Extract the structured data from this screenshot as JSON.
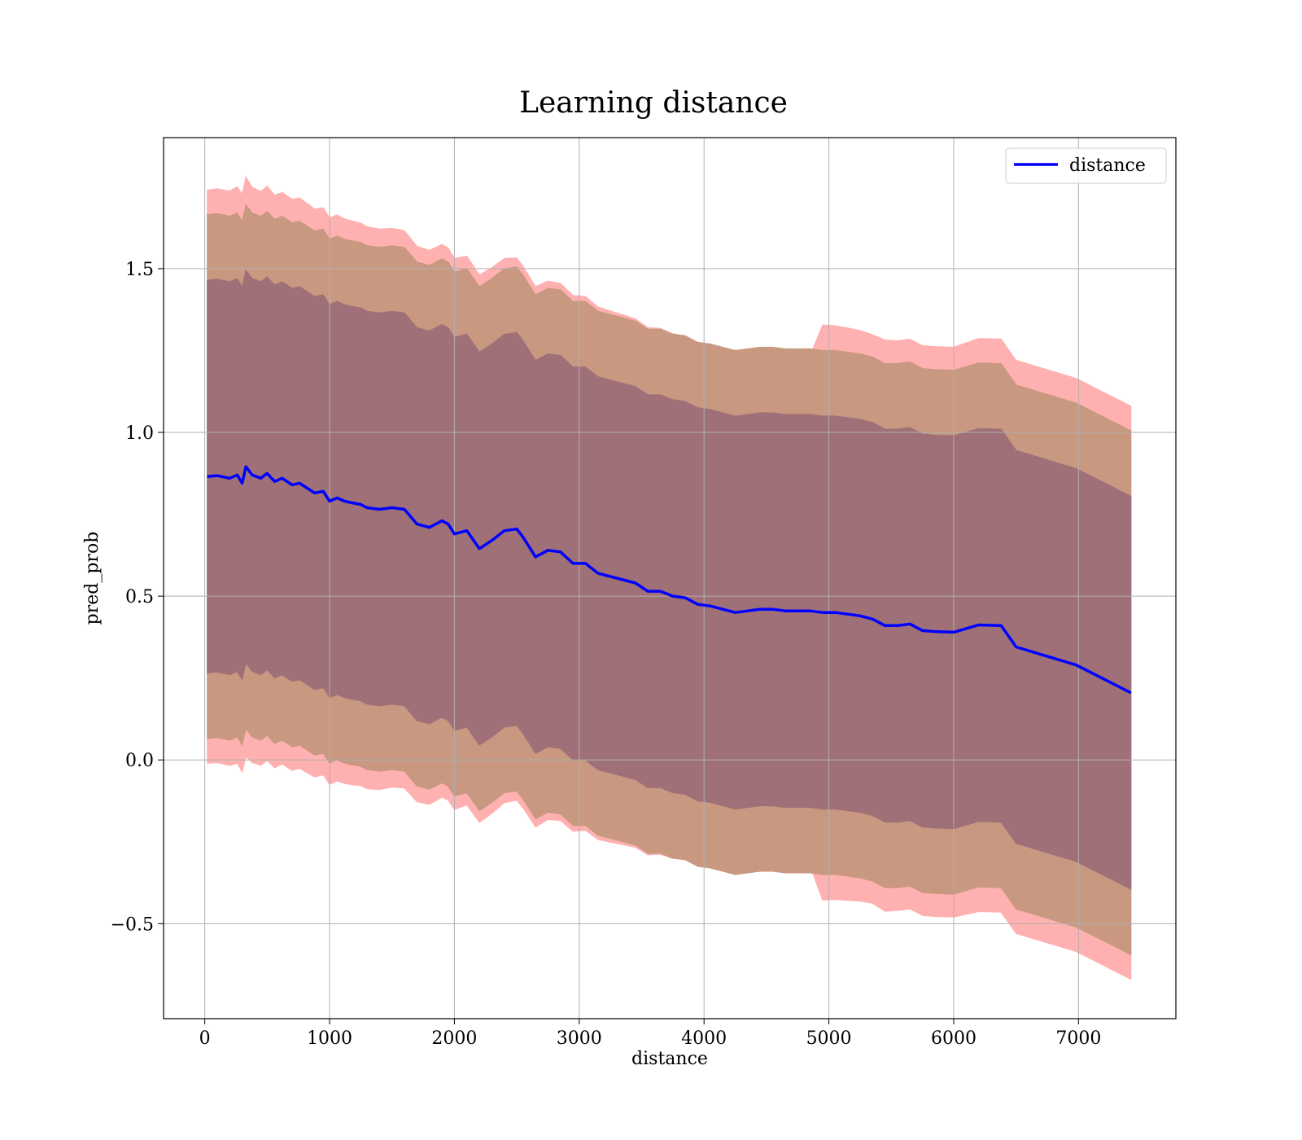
{
  "chart_data": {
    "type": "line",
    "title": "Learning distance",
    "xlabel": "distance",
    "ylabel": "pred_prob",
    "xlim": [
      -330,
      7780
    ],
    "ylim": [
      -0.79,
      1.9
    ],
    "xticks": [
      0,
      1000,
      2000,
      3000,
      4000,
      5000,
      6000,
      7000
    ],
    "xtick_labels": [
      "0",
      "1000",
      "2000",
      "3000",
      "4000",
      "5000",
      "6000",
      "7000"
    ],
    "yticks": [
      -0.5,
      0.0,
      0.5,
      1.0,
      1.5
    ],
    "ytick_labels": [
      "−0.5",
      "0.0",
      "0.5",
      "1.0",
      "1.5"
    ],
    "grid": true,
    "legend_position": "top-right",
    "colors": {
      "line": "#0000ff",
      "band_3sd": "#ffb0b0",
      "band_2sd": "#c89880",
      "band_1sd": "#a07078",
      "grid": "#b0b0b0"
    },
    "series": [
      {
        "name": "distance",
        "x": [
          20,
          100,
          200,
          260,
          300,
          330,
          380,
          450,
          500,
          560,
          620,
          700,
          760,
          820,
          880,
          950,
          1000,
          1060,
          1120,
          1180,
          1250,
          1300,
          1400,
          1500,
          1600,
          1700,
          1800,
          1900,
          1950,
          2000,
          2100,
          2200,
          2300,
          2400,
          2500,
          2550,
          2650,
          2750,
          2850,
          2950,
          3050,
          3150,
          3250,
          3350,
          3450,
          3550,
          3650,
          3750,
          3850,
          3950,
          4050,
          4150,
          4250,
          4350,
          4450,
          4550,
          4650,
          4750,
          4850,
          4950,
          5050,
          5150,
          5250,
          5350,
          5450,
          5550,
          5650,
          5750,
          5850,
          6000,
          6200,
          6380,
          6500,
          6980,
          7420
        ],
        "values": [
          0.865,
          0.868,
          0.86,
          0.87,
          0.845,
          0.895,
          0.87,
          0.86,
          0.875,
          0.85,
          0.86,
          0.84,
          0.845,
          0.83,
          0.815,
          0.82,
          0.79,
          0.8,
          0.79,
          0.785,
          0.78,
          0.77,
          0.765,
          0.77,
          0.765,
          0.72,
          0.71,
          0.73,
          0.72,
          0.69,
          0.7,
          0.645,
          0.67,
          0.7,
          0.705,
          0.68,
          0.62,
          0.64,
          0.635,
          0.6,
          0.6,
          0.57,
          0.56,
          0.55,
          0.54,
          0.515,
          0.515,
          0.5,
          0.495,
          0.475,
          0.47,
          0.46,
          0.45,
          0.455,
          0.46,
          0.46,
          0.455,
          0.455,
          0.455,
          0.45,
          0.45,
          0.445,
          0.44,
          0.43,
          0.41,
          0.41,
          0.415,
          0.395,
          0.392,
          0.39,
          0.412,
          0.41,
          0.345,
          0.29,
          0.205
        ]
      }
    ],
    "bands": [
      {
        "level": "3sd",
        "halfwidth": [
          0.875,
          0.876,
          0.877,
          0.88,
          0.882,
          0.885,
          0.878,
          0.876,
          0.877,
          0.874,
          0.873,
          0.872,
          0.871,
          0.869,
          0.867,
          0.866,
          0.865,
          0.864,
          0.862,
          0.861,
          0.859,
          0.858,
          0.856,
          0.853,
          0.851,
          0.848,
          0.846,
          0.844,
          0.843,
          0.841,
          0.838,
          0.836,
          0.833,
          0.831,
          0.828,
          0.827,
          0.825,
          0.822,
          0.82,
          0.818,
          0.815,
          0.813,
          0.811,
          0.809,
          0.807,
          0.805,
          0.803,
          0.801,
          0.799,
          0.797,
          0.795,
          0.793,
          0.791,
          0.789,
          0.787,
          0.785,
          0.783,
          0.781,
          0.78,
          0.878,
          0.876,
          0.874,
          0.871,
          0.868,
          0.872,
          0.87,
          0.87,
          0.87,
          0.87,
          0.87,
          0.875,
          0.875,
          0.875,
          0.875,
          0.875
        ]
      },
      {
        "level": "2sd",
        "halfwidth": [
          0.8,
          0.8,
          0.8,
          0.8,
          0.8,
          0.8,
          0.8,
          0.8,
          0.8,
          0.8,
          0.8,
          0.8,
          0.8,
          0.8,
          0.8,
          0.8,
          0.8,
          0.8,
          0.8,
          0.8,
          0.8,
          0.8,
          0.8,
          0.8,
          0.8,
          0.8,
          0.8,
          0.8,
          0.8,
          0.8,
          0.8,
          0.8,
          0.8,
          0.8,
          0.8,
          0.8,
          0.8,
          0.8,
          0.8,
          0.8,
          0.8,
          0.8,
          0.8,
          0.8,
          0.8,
          0.8,
          0.8,
          0.8,
          0.8,
          0.8,
          0.8,
          0.8,
          0.8,
          0.8,
          0.8,
          0.8,
          0.8,
          0.8,
          0.8,
          0.8,
          0.8,
          0.8,
          0.8,
          0.8,
          0.8,
          0.8,
          0.8,
          0.8,
          0.8,
          0.8,
          0.8,
          0.8,
          0.8,
          0.8,
          0.8
        ]
      },
      {
        "level": "1sd",
        "halfwidth": [
          0.6,
          0.6,
          0.6,
          0.6,
          0.6,
          0.6,
          0.6,
          0.6,
          0.6,
          0.6,
          0.6,
          0.6,
          0.6,
          0.6,
          0.6,
          0.6,
          0.6,
          0.6,
          0.6,
          0.6,
          0.6,
          0.6,
          0.6,
          0.6,
          0.6,
          0.6,
          0.6,
          0.6,
          0.6,
          0.6,
          0.6,
          0.6,
          0.6,
          0.6,
          0.6,
          0.6,
          0.6,
          0.6,
          0.6,
          0.6,
          0.6,
          0.6,
          0.6,
          0.6,
          0.6,
          0.6,
          0.6,
          0.6,
          0.6,
          0.6,
          0.6,
          0.6,
          0.6,
          0.6,
          0.6,
          0.6,
          0.6,
          0.6,
          0.6,
          0.6,
          0.6,
          0.6,
          0.6,
          0.6,
          0.6,
          0.6,
          0.6,
          0.6,
          0.6,
          0.6,
          0.6,
          0.6,
          0.6,
          0.6,
          0.6
        ]
      }
    ]
  }
}
